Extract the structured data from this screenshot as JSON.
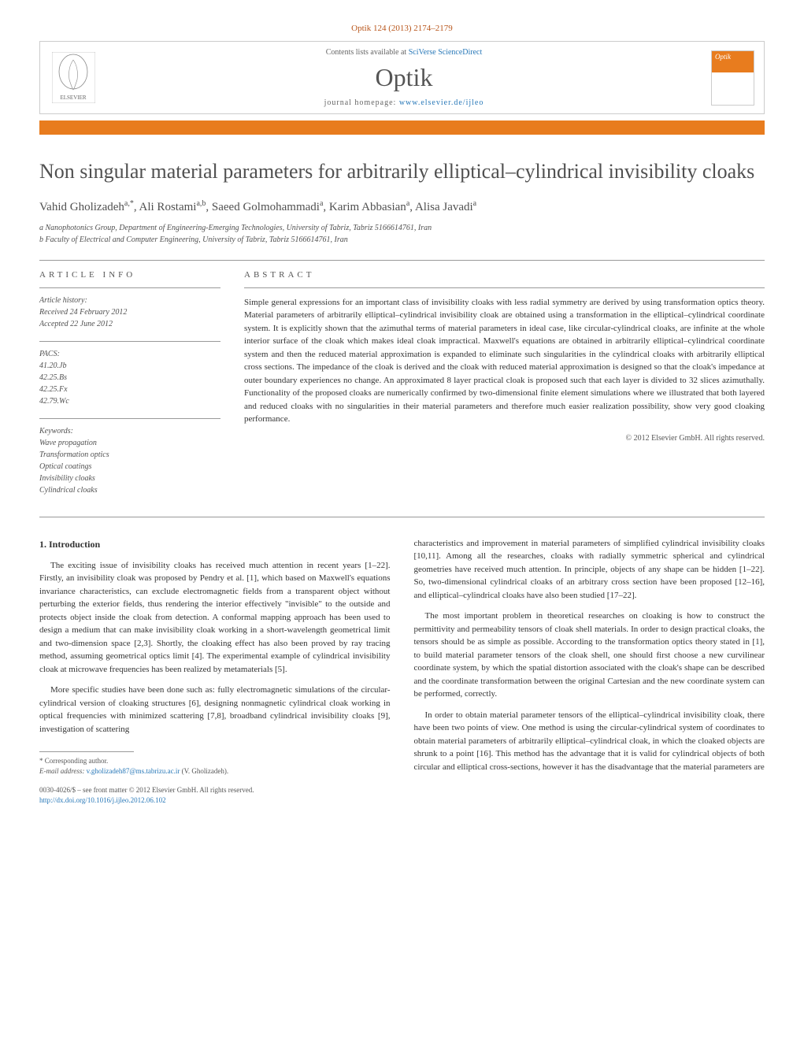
{
  "citation": "Optik 124 (2013) 2174–2179",
  "header": {
    "contents_prefix": "Contents lists available at ",
    "contents_link": "SciVerse ScienceDirect",
    "journal_name": "Optik",
    "homepage_prefix": "journal homepage: ",
    "homepage_link": "www.elsevier.de/ijleo",
    "publisher": "ELSEVIER",
    "cover_label": "Optik"
  },
  "title": "Non singular material parameters for arbitrarily elliptical–cylindrical invisibility cloaks",
  "authors_html": "Vahid Gholizadeh<sup>a,*</sup>, Ali Rostami<sup>a,b</sup>, Saeed Golmohammadi<sup>a</sup>, Karim Abbasian<sup>a</sup>, Alisa Javadi<sup>a</sup>",
  "affiliations": [
    "a Nanophotonics Group, Department of Engineering-Emerging Technologies, University of Tabriz, Tabriz 5166614761, Iran",
    "b Faculty of Electrical and Computer Engineering, University of Tabriz, Tabriz 5166614761, Iran"
  ],
  "article_info": {
    "label": "article info",
    "history_label": "Article history:",
    "received": "Received 24 February 2012",
    "accepted": "Accepted 22 June 2012",
    "pacs_label": "PACS:",
    "pacs": [
      "41.20.Jb",
      "42.25.Bs",
      "42.25.Fx",
      "42.79.Wc"
    ],
    "keywords_label": "Keywords:",
    "keywords": [
      "Wave propagation",
      "Transformation optics",
      "Optical coatings",
      "Invisibility cloaks",
      "Cylindrical cloaks"
    ]
  },
  "abstract": {
    "label": "abstract",
    "text": "Simple general expressions for an important class of invisibility cloaks with less radial symmetry are derived by using transformation optics theory. Material parameters of arbitrarily elliptical–cylindrical invisibility cloak are obtained using a transformation in the elliptical–cylindrical coordinate system. It is explicitly shown that the azimuthal terms of material parameters in ideal case, like circular-cylindrical cloaks, are infinite at the whole interior surface of the cloak which makes ideal cloak impractical. Maxwell's equations are obtained in arbitrarily elliptical–cylindrical coordinate system and then the reduced material approximation is expanded to eliminate such singularities in the cylindrical cloaks with arbitrarily elliptical cross sections. The impedance of the cloak is derived and the cloak with reduced material approximation is designed so that the cloak's impedance at outer boundary experiences no change. An approximated 8 layer practical cloak is proposed such that each layer is divided to 32 slices azimuthally. Functionality of the proposed cloaks are numerically confirmed by two-dimensional finite element simulations where we illustrated that both layered and reduced cloaks with no singularities in their material parameters and therefore much easier realization possibility, show very good cloaking performance.",
    "copyright": "© 2012 Elsevier GmbH. All rights reserved."
  },
  "intro": {
    "heading": "1. Introduction",
    "p1": "The exciting issue of invisibility cloaks has received much attention in recent years [1–22]. Firstly, an invisibility cloak was proposed by Pendry et al. [1], which based on Maxwell's equations invariance characteristics, can exclude electromagnetic fields from a transparent object without perturbing the exterior fields, thus rendering the interior effectively \"invisible\" to the outside and protects object inside the cloak from detection. A conformal mapping approach has been used to design a medium that can make invisibility cloak working in a short-wavelength geometrical limit and two-dimension space [2,3]. Shortly, the cloaking effect has also been proved by ray tracing method, assuming geometrical optics limit [4]. The experimental example of cylindrical invisibility cloak at microwave frequencies has been realized by metamaterials [5].",
    "p2": "More specific studies have been done such as: fully electromagnetic simulations of the circular-cylindrical version of cloaking structures [6], designing nonmagnetic cylindrical cloak working in optical frequencies with minimized scattering [7,8], broadband cylindrical invisibility cloaks [9], investigation of scattering",
    "p3": "characteristics and improvement in material parameters of simplified cylindrical invisibility cloaks [10,11]. Among all the researches, cloaks with radially symmetric spherical and cylindrical geometries have received much attention. In principle, objects of any shape can be hidden [1–22]. So, two-dimensional cylindrical cloaks of an arbitrary cross section have been proposed [12–16], and elliptical–cylindrical cloaks have also been studied [17–22].",
    "p4": "The most important problem in theoretical researches on cloaking is how to construct the permittivity and permeability tensors of cloak shell materials. In order to design practical cloaks, the tensors should be as simple as possible. According to the transformation optics theory stated in [1], to build material parameter tensors of the cloak shell, one should first choose a new curvilinear coordinate system, by which the spatial distortion associated with the cloak's shape can be described and the coordinate transformation between the original Cartesian and the new coordinate system can be performed, correctly.",
    "p5": "In order to obtain material parameter tensors of the elliptical–cylindrical invisibility cloak, there have been two points of view. One method is using the circular-cylindrical system of coordinates to obtain material parameters of arbitrarily elliptical–cylindrical cloak, in which the cloaked objects are shrunk to a point [16]. This method has the advantage that it is valid for cylindrical objects of both circular and elliptical cross-sections, however it has the disadvantage that the material parameters are"
  },
  "corresponding": {
    "label": "* Corresponding author.",
    "email_label": "E-mail address: ",
    "email": "v.gholizadeh87@ms.tabrizu.ac.ir",
    "name": " (V. Gholizadeh)."
  },
  "footer": {
    "issn": "0030-4026/$ – see front matter © 2012 Elsevier GmbH. All rights reserved.",
    "doi_label": "http://dx.doi.org/",
    "doi": "10.1016/j.ijleo.2012.06.102"
  },
  "colors": {
    "orange": "#e87c1e",
    "link": "#2878b8",
    "text": "#333333",
    "muted": "#505050"
  }
}
